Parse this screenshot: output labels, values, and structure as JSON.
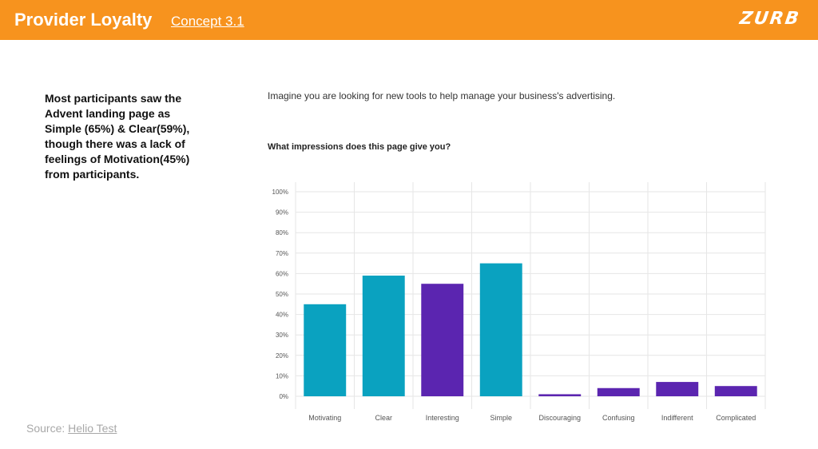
{
  "header": {
    "title": "Provider Loyalty",
    "subtitle": "Concept 3.1",
    "logo": "ZURB",
    "background_color": "#f7931e"
  },
  "summary": {
    "text": "Most participants saw the Advent landing page as Simple (65%) & Clear(59%), though there was a lack of feelings of Motivation(45%) from participants."
  },
  "question": {
    "intro": "Imagine you are looking for new tools to help manage your business's advertising.",
    "prompt": "What impressions does this page give you?"
  },
  "source": {
    "label": "Source:",
    "link_text": "Helio Test"
  },
  "chart_data": {
    "type": "bar",
    "categories": [
      "Motivating",
      "Clear",
      "Interesting",
      "Simple",
      "Discouraging",
      "Confusing",
      "Indifferent",
      "Complicated"
    ],
    "values": [
      45,
      59,
      55,
      65,
      1,
      4,
      7,
      5
    ],
    "bar_colors": [
      "#0aa2c0",
      "#0aa2c0",
      "#5b25b0",
      "#0aa2c0",
      "#5b25b0",
      "#5b25b0",
      "#5b25b0",
      "#5b25b0"
    ],
    "y_ticks": [
      "0%",
      "10%",
      "20%",
      "30%",
      "40%",
      "50%",
      "60%",
      "70%",
      "80%",
      "90%",
      "100%"
    ],
    "ylim": [
      0,
      100
    ],
    "title": "",
    "xlabel": "",
    "ylabel": "",
    "grid": true
  }
}
